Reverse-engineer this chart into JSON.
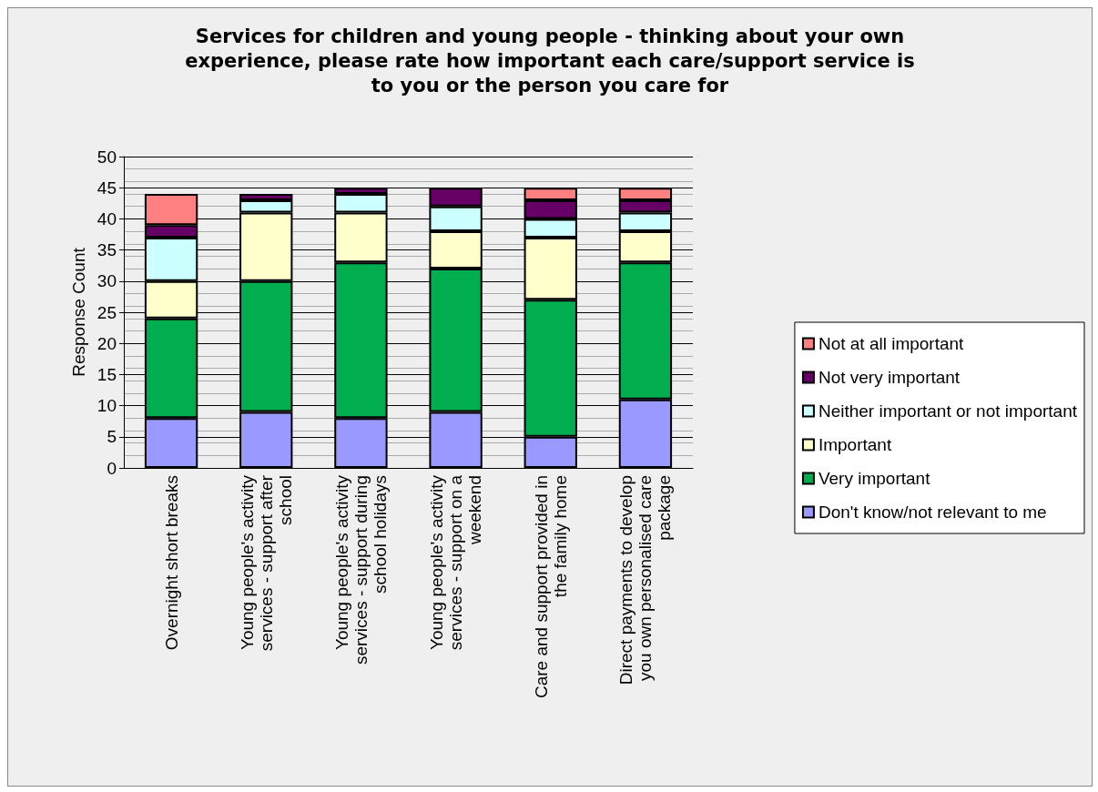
{
  "chart_data": {
    "type": "bar",
    "title": "Services for children and young people - thinking about your own experience, please rate how important each care/support service is to you or the person you care for",
    "ylabel": "Response Count",
    "categories": [
      "Overnight short breaks",
      "Young people's activity services - support after school",
      "Young people's activity services - support during school holidays",
      "Young people's activity services - support on a weekend",
      "Care and support provided in the family home",
      "Direct payments to develop you own personalised care package"
    ],
    "stacked": true,
    "ylim": [
      0,
      50
    ],
    "yticks": [
      0,
      5,
      10,
      15,
      20,
      25,
      30,
      35,
      40,
      45,
      50
    ],
    "grid": "y",
    "legend": "right",
    "series": [
      {
        "name": "Don't know/not relevant to me",
        "color": "#9999ff",
        "values": [
          8,
          9,
          8,
          9,
          5,
          11
        ]
      },
      {
        "name": "Very important",
        "color": "#00ae50",
        "values": [
          16,
          21,
          25,
          23,
          22,
          22
        ]
      },
      {
        "name": "Important",
        "color": "#ffffcc",
        "values": [
          6,
          11,
          8,
          6,
          10,
          5
        ]
      },
      {
        "name": "Neither important or not important",
        "color": "#ccffff",
        "values": [
          7,
          2,
          3,
          4,
          3,
          3
        ]
      },
      {
        "name": "Not very important",
        "color": "#660066",
        "values": [
          2,
          1,
          1,
          3,
          3,
          2
        ]
      },
      {
        "name": "Not at all important",
        "color": "#ff8080",
        "values": [
          5,
          0,
          0,
          0,
          2,
          2
        ]
      }
    ]
  }
}
